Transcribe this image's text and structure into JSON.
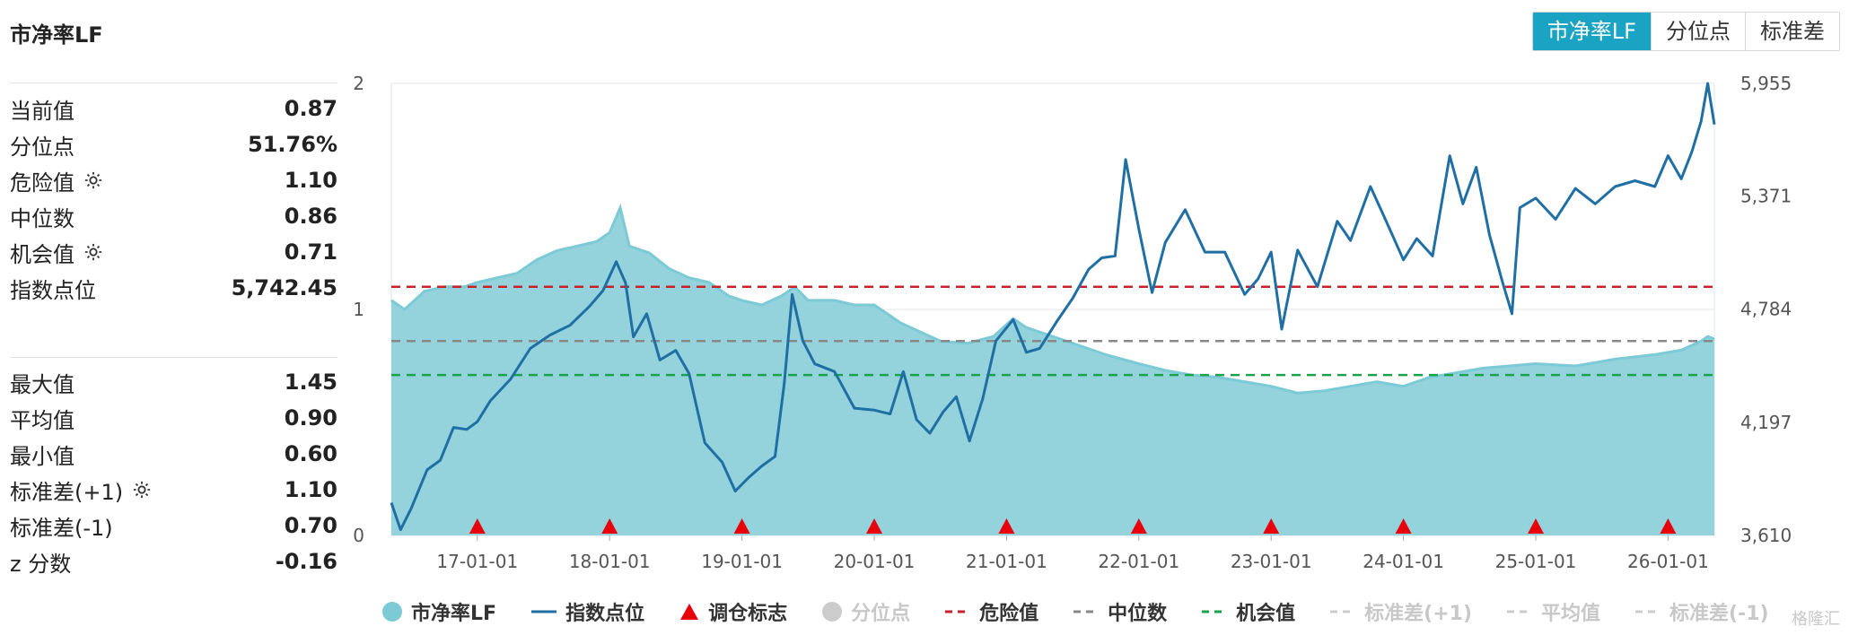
{
  "page": {
    "title": "市净率LF",
    "tabs": [
      "市净率LF",
      "分位点",
      "标准差"
    ],
    "active_tab": 0,
    "watermark": "格隆汇"
  },
  "stats_primary": [
    {
      "label": "当前值",
      "value": "0.87",
      "gear": false
    },
    {
      "label": "分位点",
      "value": "51.76%",
      "gear": false
    },
    {
      "label": "危险值",
      "value": "1.10",
      "gear": true
    },
    {
      "label": "中位数",
      "value": "0.86",
      "gear": false
    },
    {
      "label": "机会值",
      "value": "0.71",
      "gear": true
    },
    {
      "label": "指数点位",
      "value": "5,742.45",
      "gear": false
    }
  ],
  "stats_secondary": [
    {
      "label": "最大值",
      "value": "1.45",
      "gear": false
    },
    {
      "label": "平均值",
      "value": "0.90",
      "gear": false
    },
    {
      "label": "最小值",
      "value": "0.60",
      "gear": false
    },
    {
      "label": "标准差(+1)",
      "value": "1.10",
      "gear": true
    },
    {
      "label": "标准差(-1)",
      "value": "0.70",
      "gear": false
    },
    {
      "label": "z 分数",
      "value": "-0.16",
      "gear": false
    }
  ],
  "legend": [
    {
      "label": "市净率LF",
      "type": "dot",
      "color": "#7ccad6",
      "active": true
    },
    {
      "label": "指数点位",
      "type": "line",
      "color": "#1f6fa5",
      "active": true
    },
    {
      "label": "调仓标志",
      "type": "triangle",
      "color": "#e8000b",
      "active": true
    },
    {
      "label": "分位点",
      "type": "dot",
      "color": "#cccccc",
      "active": false
    },
    {
      "label": "危险值",
      "type": "dash",
      "color": "#c9212a",
      "active": true
    },
    {
      "label": "中位数",
      "type": "dash",
      "color": "#888888",
      "active": true
    },
    {
      "label": "机会值",
      "type": "dash",
      "color": "#1aa34a",
      "active": true
    },
    {
      "label": "标准差(+1)",
      "type": "dash",
      "color": "#cccccc",
      "active": false
    },
    {
      "label": "平均值",
      "type": "dash",
      "color": "#cccccc",
      "active": false
    },
    {
      "label": "标准差(-1)",
      "type": "dash",
      "color": "#cccccc",
      "active": false
    }
  ],
  "chart_data": {
    "type": "area",
    "x_tick_labels": [
      "17-01-01",
      "18-01-01",
      "19-01-01",
      "20-01-01",
      "21-01-01",
      "22-01-01",
      "23-01-01",
      "24-01-01",
      "25-01-01",
      "26-01-01"
    ],
    "x_range": [
      2016.35,
      2026.35
    ],
    "y_left": {
      "ticks": [
        "0",
        "1",
        "2"
      ],
      "range": [
        0,
        2
      ]
    },
    "y_right": {
      "ticks": [
        "3,610",
        "4,197",
        "4,784",
        "5,371",
        "5,955"
      ],
      "range": [
        3610,
        5955
      ]
    },
    "reference_lines": [
      {
        "name": "危险值",
        "value": 1.1,
        "color": "#c9212a"
      },
      {
        "name": "中位数",
        "value": 0.86,
        "color": "#888888"
      },
      {
        "name": "机会值",
        "value": 0.71,
        "color": "#1aa34a"
      }
    ],
    "rebalance_markers": [
      2017.0,
      2018.0,
      2019.0,
      2020.0,
      2021.0,
      2022.0,
      2023.0,
      2024.0,
      2025.0,
      2026.0
    ],
    "series": [
      {
        "name": "市净率LF",
        "axis": "left",
        "color": "#7ccad6",
        "points": [
          [
            2016.35,
            1.04
          ],
          [
            2016.45,
            1.0
          ],
          [
            2016.6,
            1.08
          ],
          [
            2016.75,
            1.1
          ],
          [
            2016.9,
            1.1
          ],
          [
            2017.0,
            1.12
          ],
          [
            2017.15,
            1.14
          ],
          [
            2017.3,
            1.16
          ],
          [
            2017.45,
            1.22
          ],
          [
            2017.6,
            1.26
          ],
          [
            2017.75,
            1.28
          ],
          [
            2017.9,
            1.3
          ],
          [
            2018.0,
            1.34
          ],
          [
            2018.08,
            1.45
          ],
          [
            2018.15,
            1.28
          ],
          [
            2018.3,
            1.25
          ],
          [
            2018.45,
            1.18
          ],
          [
            2018.6,
            1.14
          ],
          [
            2018.75,
            1.12
          ],
          [
            2018.9,
            1.06
          ],
          [
            2019.0,
            1.04
          ],
          [
            2019.15,
            1.02
          ],
          [
            2019.3,
            1.06
          ],
          [
            2019.4,
            1.1
          ],
          [
            2019.5,
            1.04
          ],
          [
            2019.7,
            1.04
          ],
          [
            2019.85,
            1.02
          ],
          [
            2020.0,
            1.02
          ],
          [
            2020.1,
            0.98
          ],
          [
            2020.2,
            0.94
          ],
          [
            2020.35,
            0.9
          ],
          [
            2020.5,
            0.86
          ],
          [
            2020.7,
            0.85
          ],
          [
            2020.9,
            0.88
          ],
          [
            2021.05,
            0.96
          ],
          [
            2021.15,
            0.92
          ],
          [
            2021.35,
            0.88
          ],
          [
            2021.55,
            0.84
          ],
          [
            2021.75,
            0.8
          ],
          [
            2022.0,
            0.76
          ],
          [
            2022.2,
            0.73
          ],
          [
            2022.4,
            0.71
          ],
          [
            2022.6,
            0.7
          ],
          [
            2022.8,
            0.68
          ],
          [
            2023.0,
            0.66
          ],
          [
            2023.2,
            0.63
          ],
          [
            2023.4,
            0.64
          ],
          [
            2023.6,
            0.66
          ],
          [
            2023.8,
            0.68
          ],
          [
            2024.0,
            0.66
          ],
          [
            2024.2,
            0.7
          ],
          [
            2024.4,
            0.72
          ],
          [
            2024.6,
            0.74
          ],
          [
            2024.8,
            0.75
          ],
          [
            2025.0,
            0.76
          ],
          [
            2025.3,
            0.75
          ],
          [
            2025.6,
            0.78
          ],
          [
            2025.9,
            0.8
          ],
          [
            2026.1,
            0.82
          ],
          [
            2026.25,
            0.86
          ],
          [
            2026.3,
            0.88
          ],
          [
            2026.35,
            0.87
          ]
        ]
      },
      {
        "name": "指数点位",
        "axis": "right",
        "color": "#1f6fa5",
        "points": [
          [
            2016.35,
            3780
          ],
          [
            2016.42,
            3640
          ],
          [
            2016.5,
            3750
          ],
          [
            2016.62,
            3950
          ],
          [
            2016.72,
            4000
          ],
          [
            2016.82,
            4170
          ],
          [
            2016.92,
            4160
          ],
          [
            2017.0,
            4200
          ],
          [
            2017.1,
            4310
          ],
          [
            2017.25,
            4420
          ],
          [
            2017.4,
            4580
          ],
          [
            2017.55,
            4650
          ],
          [
            2017.7,
            4700
          ],
          [
            2017.85,
            4800
          ],
          [
            2017.95,
            4880
          ],
          [
            2018.05,
            5030
          ],
          [
            2018.12,
            4920
          ],
          [
            2018.18,
            4640
          ],
          [
            2018.28,
            4760
          ],
          [
            2018.38,
            4520
          ],
          [
            2018.5,
            4570
          ],
          [
            2018.6,
            4450
          ],
          [
            2018.72,
            4090
          ],
          [
            2018.85,
            3990
          ],
          [
            2018.95,
            3840
          ],
          [
            2019.05,
            3910
          ],
          [
            2019.15,
            3970
          ],
          [
            2019.25,
            4020
          ],
          [
            2019.32,
            4400
          ],
          [
            2019.38,
            4860
          ],
          [
            2019.46,
            4620
          ],
          [
            2019.55,
            4500
          ],
          [
            2019.7,
            4460
          ],
          [
            2019.85,
            4270
          ],
          [
            2020.0,
            4260
          ],
          [
            2020.12,
            4240
          ],
          [
            2020.22,
            4460
          ],
          [
            2020.32,
            4210
          ],
          [
            2020.42,
            4140
          ],
          [
            2020.52,
            4250
          ],
          [
            2020.62,
            4330
          ],
          [
            2020.72,
            4100
          ],
          [
            2020.82,
            4320
          ],
          [
            2020.92,
            4620
          ],
          [
            2021.05,
            4730
          ],
          [
            2021.15,
            4560
          ],
          [
            2021.25,
            4580
          ],
          [
            2021.38,
            4720
          ],
          [
            2021.5,
            4840
          ],
          [
            2021.62,
            4990
          ],
          [
            2021.72,
            5050
          ],
          [
            2021.82,
            5060
          ],
          [
            2021.9,
            5560
          ],
          [
            2022.0,
            5200
          ],
          [
            2022.1,
            4870
          ],
          [
            2022.2,
            5130
          ],
          [
            2022.35,
            5300
          ],
          [
            2022.5,
            5080
          ],
          [
            2022.65,
            5080
          ],
          [
            2022.8,
            4860
          ],
          [
            2022.9,
            4940
          ],
          [
            2023.0,
            5080
          ],
          [
            2023.08,
            4680
          ],
          [
            2023.2,
            5090
          ],
          [
            2023.35,
            4900
          ],
          [
            2023.5,
            5240
          ],
          [
            2023.6,
            5140
          ],
          [
            2023.75,
            5420
          ],
          [
            2023.85,
            5270
          ],
          [
            2024.0,
            5040
          ],
          [
            2024.1,
            5150
          ],
          [
            2024.22,
            5060
          ],
          [
            2024.35,
            5580
          ],
          [
            2024.45,
            5330
          ],
          [
            2024.55,
            5520
          ],
          [
            2024.65,
            5170
          ],
          [
            2024.75,
            4920
          ],
          [
            2024.82,
            4760
          ],
          [
            2024.88,
            5310
          ],
          [
            2025.0,
            5360
          ],
          [
            2025.15,
            5250
          ],
          [
            2025.3,
            5410
          ],
          [
            2025.45,
            5330
          ],
          [
            2025.6,
            5420
          ],
          [
            2025.75,
            5450
          ],
          [
            2025.9,
            5420
          ],
          [
            2026.0,
            5580
          ],
          [
            2026.1,
            5460
          ],
          [
            2026.18,
            5600
          ],
          [
            2026.25,
            5760
          ],
          [
            2026.3,
            5955
          ],
          [
            2026.35,
            5742
          ]
        ]
      }
    ]
  }
}
